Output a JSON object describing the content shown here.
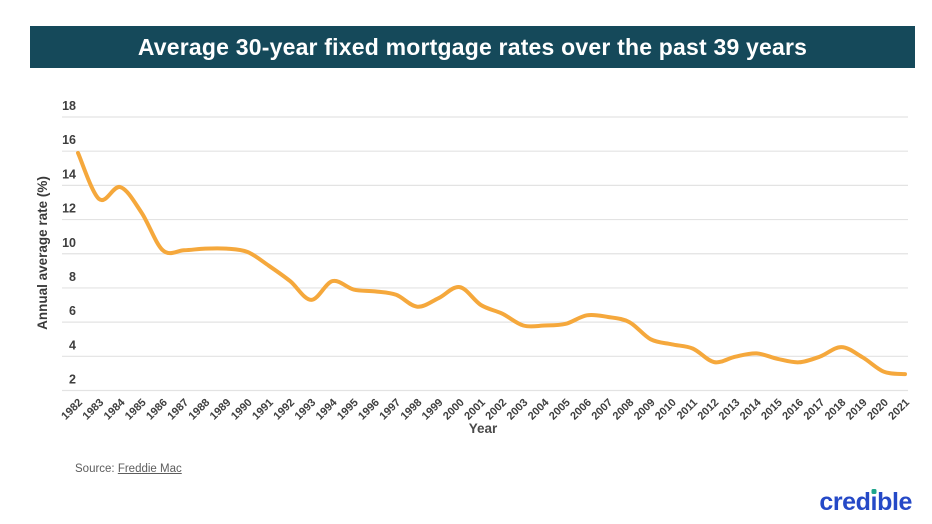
{
  "header": {
    "title": "Average 30-year fixed mortgage rates over the past 39 years"
  },
  "chart_data": {
    "type": "line",
    "title": "Average 30-year fixed mortgage rates over the past 39 years",
    "xlabel": "Year",
    "ylabel": "Annual average rate (%)",
    "ylim": [
      2,
      18
    ],
    "y_ticks": [
      18,
      16,
      14,
      12,
      10,
      8,
      6,
      4,
      2
    ],
    "grid": "horizontal-only",
    "legend": "none",
    "categories": [
      "1982",
      "1983",
      "1984",
      "1985",
      "1986",
      "1987",
      "1988",
      "1989",
      "1990",
      "1991",
      "1992",
      "1993",
      "1994",
      "1995",
      "1996",
      "1997",
      "1998",
      "1999",
      "2000",
      "2001",
      "2002",
      "2003",
      "2004",
      "2005",
      "2006",
      "2007",
      "2008",
      "2009",
      "2010",
      "2011",
      "2012",
      "2013",
      "2014",
      "2015",
      "2016",
      "2017",
      "2018",
      "2019",
      "2020",
      "2021"
    ],
    "values": [
      15.9,
      13.2,
      13.9,
      12.4,
      10.2,
      10.2,
      10.3,
      10.3,
      10.1,
      9.3,
      8.4,
      7.3,
      8.4,
      7.9,
      7.8,
      7.6,
      6.9,
      7.4,
      8.05,
      7.0,
      6.5,
      5.8,
      5.8,
      5.9,
      6.4,
      6.3,
      6.0,
      5.0,
      4.7,
      4.45,
      3.66,
      3.98,
      4.17,
      3.85,
      3.65,
      3.99,
      4.54,
      3.94,
      3.1,
      2.96
    ]
  },
  "footer": {
    "source_prefix": "Source: ",
    "source_link": "Freddie Mac"
  },
  "logo": {
    "full": "credible",
    "part1": "cred",
    "dotless_i": "ı",
    "part2": "ble"
  },
  "colors": {
    "header_bg": "#15495A",
    "header_text": "#FFFFFF",
    "line": "#F5A83C",
    "grid": "#E3E3E3",
    "tick_text": "#3E3E3E",
    "axis_title_text": "#4A4A4A",
    "source_text": "#5D5D5D",
    "logo_blue": "#2549C7",
    "logo_dot": "#1FA58C"
  }
}
